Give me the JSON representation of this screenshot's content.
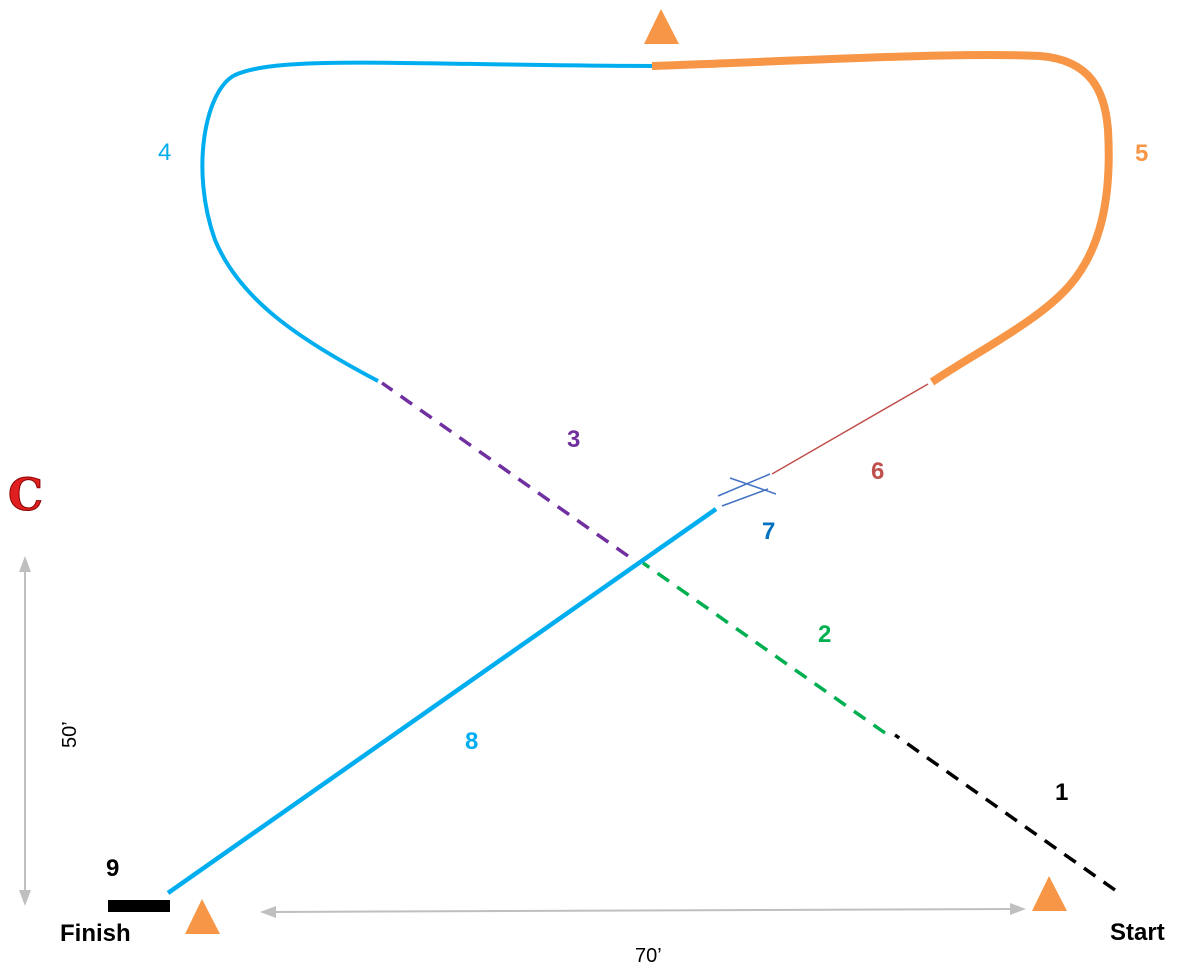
{
  "colors": {
    "blue": "#00AEEF",
    "orange": "#F79646",
    "purple": "#7030A0",
    "green": "#00B050",
    "red": "#C0504D",
    "navy": "#0070C0",
    "black": "#000000",
    "grey": "#BFBFBF",
    "marker": "#E02020"
  },
  "segments": [
    {
      "id": "1",
      "label": "1",
      "color": "black"
    },
    {
      "id": "2",
      "label": "2",
      "color": "green"
    },
    {
      "id": "3",
      "label": "3",
      "color": "purple"
    },
    {
      "id": "4",
      "label": "4",
      "color": "blue"
    },
    {
      "id": "5",
      "label": "5",
      "color": "orange"
    },
    {
      "id": "6",
      "label": "6",
      "color": "red"
    },
    {
      "id": "7",
      "label": "7",
      "color": "navy"
    },
    {
      "id": "8",
      "label": "8",
      "color": "blue"
    },
    {
      "id": "9",
      "label": "9",
      "color": "black"
    }
  ],
  "labels": {
    "start": "Start",
    "finish": "Finish",
    "marker_letter": "C"
  },
  "dimensions": {
    "width_label": "70’",
    "height_label": "50’"
  },
  "icons": [
    "cone-icon",
    "letter-marker-icon"
  ]
}
